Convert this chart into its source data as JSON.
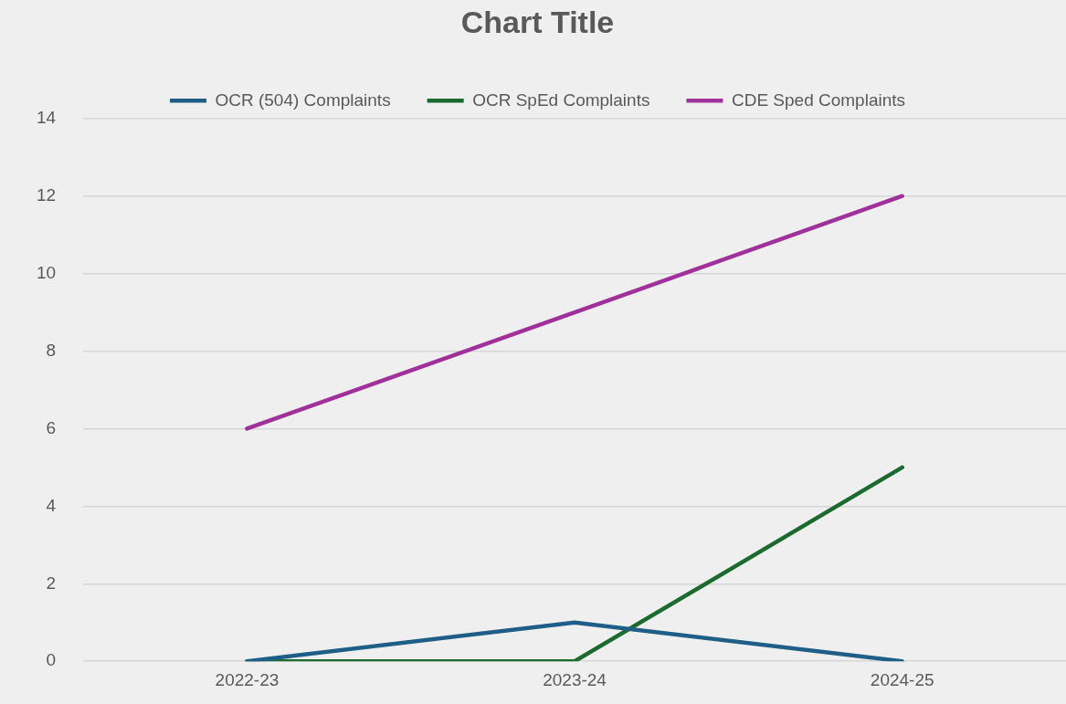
{
  "chart_data": {
    "type": "line",
    "title": "Chart Title",
    "categories": [
      "2022-23",
      "2023-24",
      "2024-25"
    ],
    "series": [
      {
        "name": "OCR (504) Complaints",
        "color": "#1f5f87",
        "values": [
          0,
          1,
          0
        ]
      },
      {
        "name": "OCR SpEd Complaints",
        "color": "#1b6b2f",
        "values": [
          0,
          0,
          5
        ]
      },
      {
        "name": "CDE Sped Complaints",
        "color": "#a0309a",
        "values": [
          6,
          9,
          12
        ]
      }
    ],
    "ylim": [
      0,
      14
    ],
    "yticks": [
      0,
      2,
      4,
      6,
      8,
      10,
      12,
      14
    ],
    "grid": "y",
    "legend": "top",
    "marker": "none",
    "line_style": "solid"
  }
}
